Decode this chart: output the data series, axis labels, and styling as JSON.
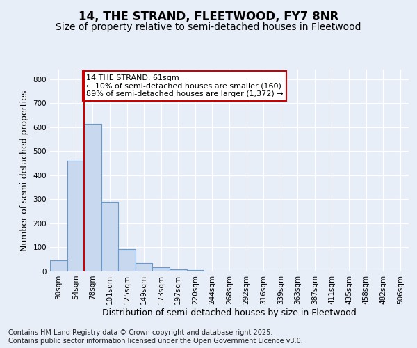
{
  "title": "14, THE STRAND, FLEETWOOD, FY7 8NR",
  "subtitle": "Size of property relative to semi-detached houses in Fleetwood",
  "xlabel": "Distribution of semi-detached houses by size in Fleetwood",
  "ylabel": "Number of semi-detached properties",
  "categories": [
    "30sqm",
    "54sqm",
    "78sqm",
    "101sqm",
    "125sqm",
    "149sqm",
    "173sqm",
    "197sqm",
    "220sqm",
    "244sqm",
    "268sqm",
    "292sqm",
    "316sqm",
    "339sqm",
    "363sqm",
    "387sqm",
    "411sqm",
    "435sqm",
    "458sqm",
    "482sqm",
    "506sqm"
  ],
  "values": [
    45,
    460,
    615,
    290,
    93,
    35,
    18,
    10,
    5,
    0,
    0,
    0,
    0,
    0,
    0,
    0,
    0,
    0,
    0,
    0,
    0
  ],
  "bar_color": "#c8d9ef",
  "bar_edge_color": "#6699cc",
  "vline_color": "#cc0000",
  "annotation_text": "14 THE STRAND: 61sqm\n← 10% of semi-detached houses are smaller (160)\n89% of semi-detached houses are larger (1,372) →",
  "annotation_box_color": "#ffffff",
  "annotation_box_edge": "#cc0000",
  "ylim": [
    0,
    840
  ],
  "yticks": [
    0,
    100,
    200,
    300,
    400,
    500,
    600,
    700,
    800
  ],
  "background_color": "#e8eef8",
  "grid_color": "#ffffff",
  "footer_text": "Contains HM Land Registry data © Crown copyright and database right 2025.\nContains public sector information licensed under the Open Government Licence v3.0.",
  "title_fontsize": 12,
  "subtitle_fontsize": 10,
  "xlabel_fontsize": 9,
  "ylabel_fontsize": 9,
  "tick_fontsize": 7.5,
  "footer_fontsize": 7,
  "annot_fontsize": 8
}
